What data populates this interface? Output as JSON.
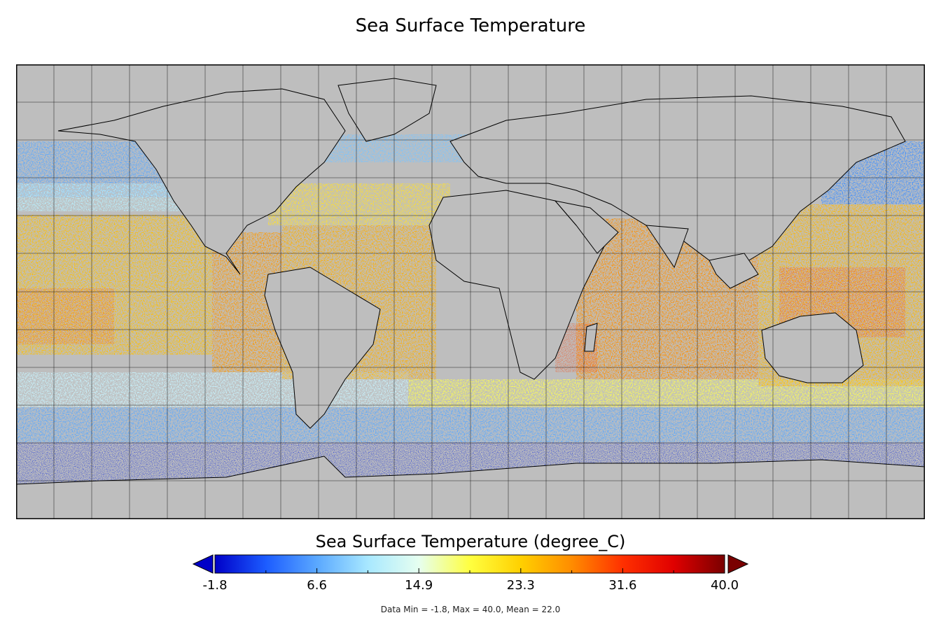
{
  "title": "Sea Surface Temperature",
  "colorbar": {
    "label": "Sea Surface Temperature (degree_C)",
    "ticks": [
      "-1.8",
      "6.6",
      "14.9",
      "23.3",
      "31.6",
      "40.0"
    ],
    "min": -1.8,
    "max": 40.0,
    "colors": [
      "#0000c8",
      "#1c5cff",
      "#5aa8ff",
      "#a8e8ff",
      "#e6fff0",
      "#ffff40",
      "#ffd000",
      "#ff8c00",
      "#ff3000",
      "#e00000",
      "#7a0000"
    ],
    "under_color": "#0000c8",
    "over_color": "#7a0000"
  },
  "map": {
    "projection": "equirectangular",
    "graticule_spacing_deg": 15,
    "land_color": "#bebebe",
    "coastline_color": "#000000"
  },
  "stats": {
    "text": "Data Min = -1.8, Max = 40.0, Mean = 22.0"
  }
}
